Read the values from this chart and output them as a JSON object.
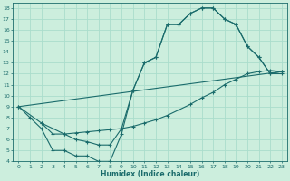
{
  "bg_color": "#cceedd",
  "line_color": "#1a6b6b",
  "grid_color": "#aaddcc",
  "xlabel": "Humidex (Indice chaleur)",
  "xlim": [
    -0.5,
    23.5
  ],
  "ylim": [
    4,
    18.5
  ],
  "xticks": [
    0,
    1,
    2,
    3,
    4,
    5,
    6,
    7,
    8,
    9,
    10,
    11,
    12,
    13,
    14,
    15,
    16,
    17,
    18,
    19,
    20,
    21,
    22,
    23
  ],
  "yticks": [
    4,
    5,
    6,
    7,
    8,
    9,
    10,
    11,
    12,
    13,
    14,
    15,
    16,
    17,
    18
  ],
  "line1_x": [
    0,
    1,
    2,
    3,
    4,
    5,
    6,
    7,
    8,
    9,
    10,
    11,
    12,
    13,
    14,
    15,
    16,
    17,
    18,
    19,
    20,
    21,
    22,
    23
  ],
  "line1_y": [
    9,
    8,
    7,
    5,
    5,
    4.5,
    4.5,
    4,
    4,
    6.5,
    10.5,
    13,
    13.5,
    16.5,
    16.5,
    17.5,
    18,
    18,
    17,
    16.5,
    14.5,
    13.5,
    12,
    12
  ],
  "line2_x": [
    0,
    2,
    3,
    4,
    5,
    6,
    7,
    8,
    9,
    10,
    11,
    12,
    13,
    14,
    15,
    16,
    17,
    18,
    19,
    20,
    21,
    22,
    23
  ],
  "line2_y": [
    9,
    7.5,
    7.0,
    6.5,
    6.6,
    6.7,
    6.8,
    6.9,
    7.0,
    7.2,
    7.5,
    7.8,
    8.2,
    8.7,
    9.2,
    9.8,
    10.3,
    11.0,
    11.5,
    12.0,
    12.2,
    12.3,
    12.2
  ],
  "line3_x": [
    0,
    23
  ],
  "line3_y": [
    9,
    12.2
  ],
  "line4_x": [
    2,
    3,
    4,
    5,
    6,
    7,
    8,
    9,
    10,
    11,
    12,
    13,
    14,
    15,
    16,
    17,
    18,
    19,
    20,
    21,
    22,
    23
  ],
  "line4_y": [
    7.5,
    6.5,
    6.5,
    6.0,
    5.8,
    5.5,
    5.5,
    7.0,
    10.5,
    13.0,
    13.5,
    16.5,
    16.5,
    17.5,
    18.0,
    18.0,
    17.0,
    16.5,
    14.5,
    13.5,
    12.0,
    12.2
  ]
}
